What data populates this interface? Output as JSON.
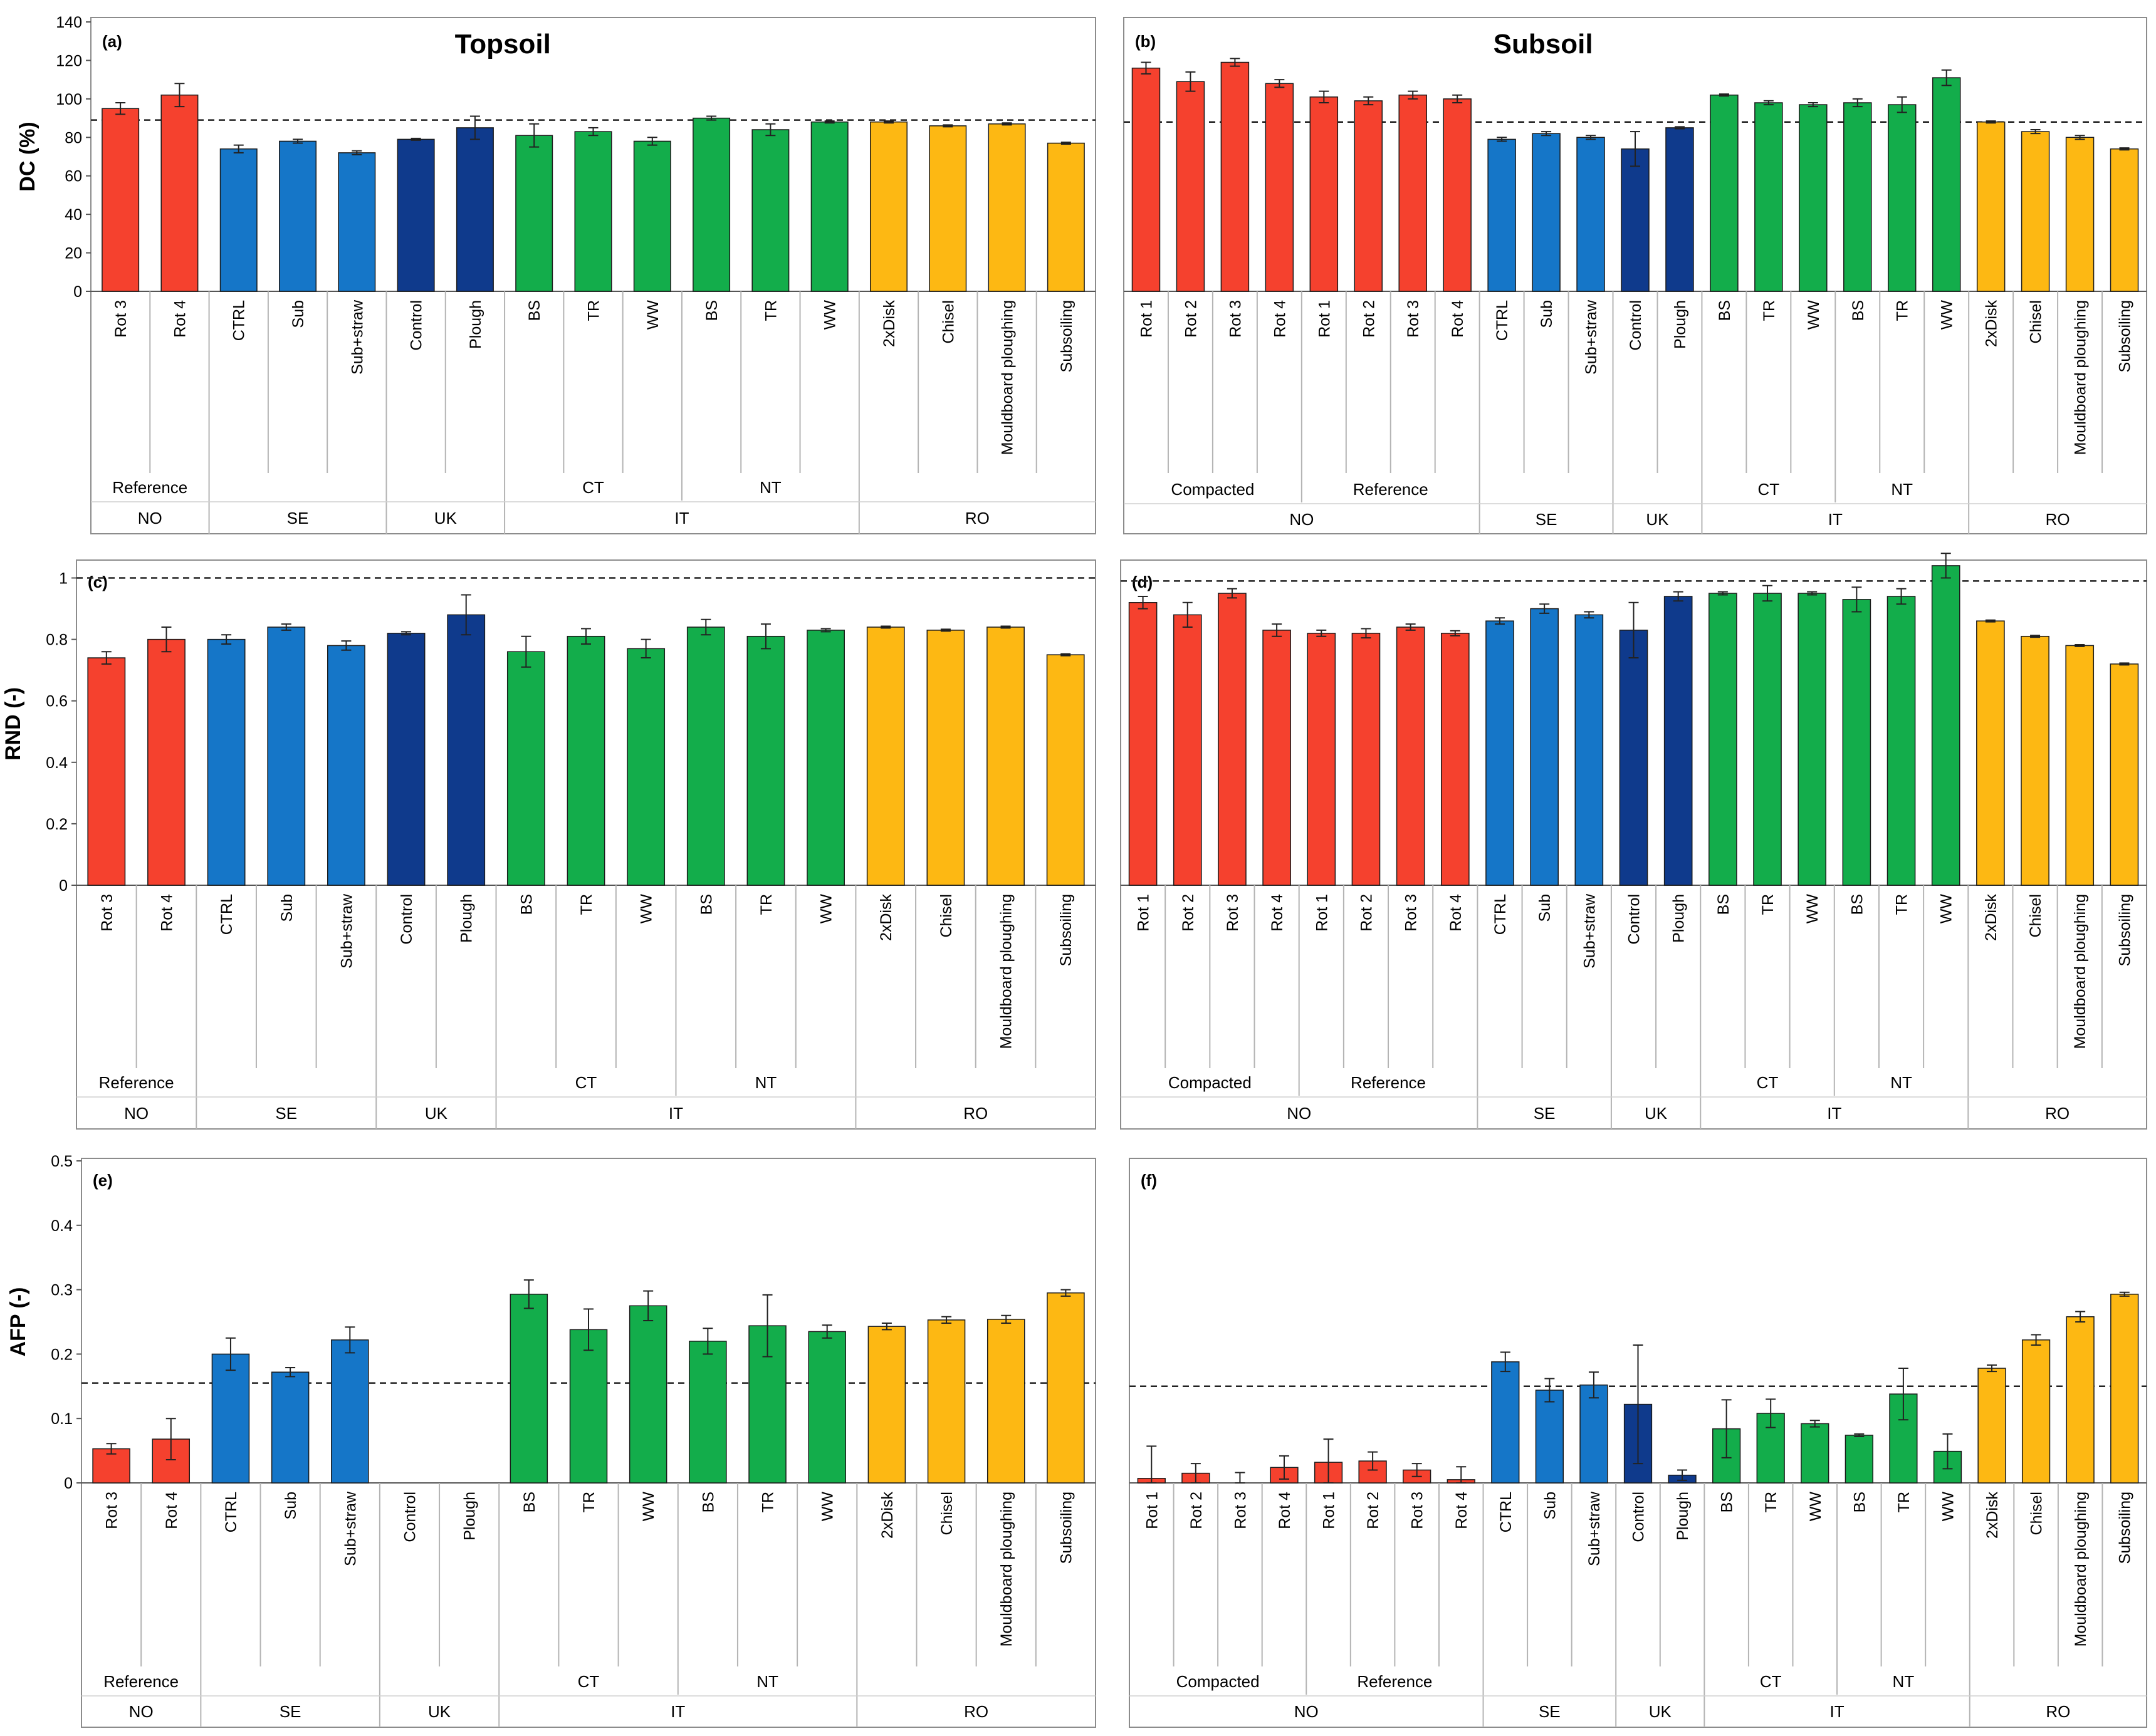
{
  "colors": {
    "NO": "#f5412e",
    "SE": "#1576c8",
    "UK": "#0f3a8c",
    "IT": "#13ad4b",
    "RO": "#fdb813"
  },
  "chart_data": [
    {
      "panel": "(a)",
      "title": "Topsoil",
      "ylabel": "DC (%)",
      "type": "bar",
      "ylim": [
        0,
        140
      ],
      "yticks": [
        0,
        20,
        40,
        60,
        80,
        100,
        120,
        140
      ],
      "reference_line": 89,
      "categories": [
        "Rot 3",
        "Rot 4",
        "CTRL",
        "Sub",
        "Sub+straw",
        "Control",
        "Plough",
        "BS",
        "TR",
        "WW",
        "BS",
        "TR",
        "WW",
        "2xDisk",
        "Chisel",
        "Mouldboard ploughing",
        "Subsoiling"
      ],
      "values": [
        95,
        102,
        74,
        78,
        72,
        79,
        85,
        81,
        83,
        78,
        90,
        84,
        88,
        88,
        86,
        87,
        77
      ],
      "errors": [
        3,
        6,
        2,
        1,
        1,
        0.5,
        6,
        6,
        2,
        2,
        1,
        3,
        0.5,
        0.5,
        0.5,
        0.5,
        0.5
      ],
      "country": [
        "NO",
        "NO",
        "SE",
        "SE",
        "SE",
        "UK",
        "UK",
        "IT",
        "IT",
        "IT",
        "IT",
        "IT",
        "IT",
        "RO",
        "RO",
        "RO",
        "RO"
      ],
      "groups_level1": [
        {
          "label": "Reference",
          "start": 0,
          "end": 1
        },
        {
          "label": "CT",
          "start": 7,
          "end": 9
        },
        {
          "label": "NT",
          "start": 10,
          "end": 12
        }
      ],
      "groups_level2": [
        {
          "label": "NO",
          "start": 0,
          "end": 1
        },
        {
          "label": "SE",
          "start": 2,
          "end": 4
        },
        {
          "label": "UK",
          "start": 5,
          "end": 6
        },
        {
          "label": "IT",
          "start": 7,
          "end": 12
        },
        {
          "label": "RO",
          "start": 13,
          "end": 16
        }
      ]
    },
    {
      "panel": "(b)",
      "title": "Subsoil",
      "ylabel": "",
      "type": "bar",
      "ylim": [
        0,
        140
      ],
      "yticks": [],
      "reference_line": 88,
      "categories": [
        "Rot 1",
        "Rot 2",
        "Rot 3",
        "Rot 4",
        "Rot 1",
        "Rot 2",
        "Rot 3",
        "Rot 4",
        "CTRL",
        "Sub",
        "Sub+straw",
        "Control",
        "Plough",
        "BS",
        "TR",
        "WW",
        "BS",
        "TR",
        "WW",
        "2xDisk",
        "Chisel",
        "Mouldboard ploughing",
        "Subsoiling"
      ],
      "values": [
        116,
        109,
        119,
        108,
        101,
        99,
        102,
        100,
        79,
        82,
        80,
        74,
        85,
        102,
        98,
        97,
        98,
        97,
        111,
        88,
        83,
        80,
        74
      ],
      "errors": [
        3,
        5,
        2,
        2,
        3,
        2,
        2,
        2,
        1,
        1,
        1,
        9,
        0.5,
        0.5,
        1,
        1,
        2,
        4,
        4,
        0.5,
        1,
        1,
        0.5
      ],
      "country": [
        "NO",
        "NO",
        "NO",
        "NO",
        "NO",
        "NO",
        "NO",
        "NO",
        "SE",
        "SE",
        "SE",
        "UK",
        "UK",
        "IT",
        "IT",
        "IT",
        "IT",
        "IT",
        "IT",
        "RO",
        "RO",
        "RO",
        "RO"
      ],
      "groups_level1": [
        {
          "label": "Compacted",
          "start": 0,
          "end": 3
        },
        {
          "label": "Reference",
          "start": 4,
          "end": 7
        },
        {
          "label": "CT",
          "start": 13,
          "end": 15
        },
        {
          "label": "NT",
          "start": 16,
          "end": 18
        }
      ],
      "groups_level2": [
        {
          "label": "NO",
          "start": 0,
          "end": 7
        },
        {
          "label": "SE",
          "start": 8,
          "end": 10
        },
        {
          "label": "UK",
          "start": 11,
          "end": 12
        },
        {
          "label": "IT",
          "start": 13,
          "end": 18
        },
        {
          "label": "RO",
          "start": 19,
          "end": 22
        }
      ]
    },
    {
      "panel": "(c)",
      "title": "",
      "ylabel": "RND (-)",
      "type": "bar",
      "ylim": [
        0,
        1.05
      ],
      "yticks": [
        0,
        0.2,
        0.4,
        0.6,
        0.8,
        1
      ],
      "reference_line": 1,
      "categories": [
        "Rot 3",
        "Rot 4",
        "CTRL",
        "Sub",
        "Sub+straw",
        "Control",
        "Plough",
        "BS",
        "TR",
        "WW",
        "BS",
        "TR",
        "WW",
        "2xDisk",
        "Chisel",
        "Mouldboard ploughing",
        "Subsoiling"
      ],
      "values": [
        0.74,
        0.8,
        0.8,
        0.84,
        0.78,
        0.82,
        0.88,
        0.76,
        0.81,
        0.77,
        0.84,
        0.81,
        0.83,
        0.84,
        0.83,
        0.84,
        0.75
      ],
      "errors": [
        0.02,
        0.04,
        0.015,
        0.01,
        0.015,
        0.005,
        0.065,
        0.05,
        0.025,
        0.03,
        0.025,
        0.04,
        0.005,
        0.003,
        0.003,
        0.003,
        0.003
      ],
      "country": [
        "NO",
        "NO",
        "SE",
        "SE",
        "SE",
        "UK",
        "UK",
        "IT",
        "IT",
        "IT",
        "IT",
        "IT",
        "IT",
        "RO",
        "RO",
        "RO",
        "RO"
      ],
      "groups_level1": [
        {
          "label": "Reference",
          "start": 0,
          "end": 1
        },
        {
          "label": "CT",
          "start": 7,
          "end": 9
        },
        {
          "label": "NT",
          "start": 10,
          "end": 12
        }
      ],
      "groups_level2": [
        {
          "label": "NO",
          "start": 0,
          "end": 1
        },
        {
          "label": "SE",
          "start": 2,
          "end": 4
        },
        {
          "label": "UK",
          "start": 5,
          "end": 6
        },
        {
          "label": "IT",
          "start": 7,
          "end": 12
        },
        {
          "label": "RO",
          "start": 13,
          "end": 16
        }
      ]
    },
    {
      "panel": "(d)",
      "title": "",
      "ylabel": "",
      "type": "bar",
      "ylim": [
        0,
        1.05
      ],
      "yticks": [],
      "reference_line": 0.99,
      "categories": [
        "Rot 1",
        "Rot 2",
        "Rot 3",
        "Rot 4",
        "Rot 1",
        "Rot 2",
        "Rot 3",
        "Rot 4",
        "CTRL",
        "Sub",
        "Sub+straw",
        "Control",
        "Plough",
        "BS",
        "TR",
        "WW",
        "BS",
        "TR",
        "WW",
        "2xDisk",
        "Chisel",
        "Mouldboard ploughing",
        "Subsoiling"
      ],
      "values": [
        0.92,
        0.88,
        0.95,
        0.83,
        0.82,
        0.82,
        0.84,
        0.82,
        0.86,
        0.9,
        0.88,
        0.83,
        0.94,
        0.95,
        0.95,
        0.95,
        0.93,
        0.94,
        1.04,
        0.86,
        0.81,
        0.78,
        0.72
      ],
      "errors": [
        0.02,
        0.04,
        0.015,
        0.02,
        0.01,
        0.015,
        0.01,
        0.008,
        0.01,
        0.015,
        0.01,
        0.09,
        0.015,
        0.005,
        0.025,
        0.005,
        0.04,
        0.025,
        0.04,
        0.003,
        0.003,
        0.003,
        0.003
      ],
      "country": [
        "NO",
        "NO",
        "NO",
        "NO",
        "NO",
        "NO",
        "NO",
        "NO",
        "SE",
        "SE",
        "SE",
        "UK",
        "UK",
        "IT",
        "IT",
        "IT",
        "IT",
        "IT",
        "IT",
        "RO",
        "RO",
        "RO",
        "RO"
      ],
      "groups_level1": [
        {
          "label": "Compacted",
          "start": 0,
          "end": 3
        },
        {
          "label": "Reference",
          "start": 4,
          "end": 7
        },
        {
          "label": "CT",
          "start": 13,
          "end": 15
        },
        {
          "label": "NT",
          "start": 16,
          "end": 18
        }
      ],
      "groups_level2": [
        {
          "label": "NO",
          "start": 0,
          "end": 7
        },
        {
          "label": "SE",
          "start": 8,
          "end": 10
        },
        {
          "label": "UK",
          "start": 11,
          "end": 12
        },
        {
          "label": "IT",
          "start": 13,
          "end": 18
        },
        {
          "label": "RO",
          "start": 19,
          "end": 22
        }
      ]
    },
    {
      "panel": "(e)",
      "title": "",
      "ylabel": "AFP (-)",
      "type": "bar",
      "ylim": [
        0,
        0.5
      ],
      "yticks": [
        0,
        0.1,
        0.2,
        0.3,
        0.4,
        0.5
      ],
      "reference_line": 0.155,
      "categories": [
        "Rot 3",
        "Rot 4",
        "CTRL",
        "Sub",
        "Sub+straw",
        "Control",
        "Plough",
        "BS",
        "TR",
        "WW",
        "BS",
        "TR",
        "WW",
        "2xDisk",
        "Chisel",
        "Mouldboard ploughing",
        "Subsoiling"
      ],
      "values": [
        0.053,
        0.068,
        0.2,
        0.172,
        0.222,
        null,
        null,
        0.293,
        0.238,
        0.275,
        0.22,
        0.244,
        0.235,
        0.243,
        0.253,
        0.254,
        0.295
      ],
      "errors": [
        0.008,
        0.032,
        0.025,
        0.007,
        0.02,
        null,
        null,
        0.022,
        0.032,
        0.023,
        0.02,
        0.048,
        0.01,
        0.005,
        0.005,
        0.006,
        0.005
      ],
      "country": [
        "NO",
        "NO",
        "SE",
        "SE",
        "SE",
        "UK",
        "UK",
        "IT",
        "IT",
        "IT",
        "IT",
        "IT",
        "IT",
        "RO",
        "RO",
        "RO",
        "RO"
      ],
      "groups_level1": [
        {
          "label": "Reference",
          "start": 0,
          "end": 1
        },
        {
          "label": "CT",
          "start": 7,
          "end": 9
        },
        {
          "label": "NT",
          "start": 10,
          "end": 12
        }
      ],
      "groups_level2": [
        {
          "label": "NO",
          "start": 0,
          "end": 1
        },
        {
          "label": "SE",
          "start": 2,
          "end": 4
        },
        {
          "label": "UK",
          "start": 5,
          "end": 6
        },
        {
          "label": "IT",
          "start": 7,
          "end": 12
        },
        {
          "label": "RO",
          "start": 13,
          "end": 16
        }
      ]
    },
    {
      "panel": "(f)",
      "title": "",
      "ylabel": "",
      "type": "bar",
      "ylim": [
        0,
        0.5
      ],
      "yticks": [],
      "reference_line": 0.15,
      "categories": [
        "Rot 1",
        "Rot 2",
        "Rot 3",
        "Rot 4",
        "Rot 1",
        "Rot 2",
        "Rot 3",
        "Rot 4",
        "CTRL",
        "Sub",
        "Sub+straw",
        "Control",
        "Plough",
        "BS",
        "TR",
        "WW",
        "BS",
        "TR",
        "WW",
        "2xDisk",
        "Chisel",
        "Mouldboard ploughing",
        "Subsoiling"
      ],
      "values": [
        0.007,
        0.015,
        0,
        0.024,
        0.032,
        0.034,
        0.02,
        0.005,
        0.188,
        0.144,
        0.152,
        0.122,
        0.012,
        0.084,
        0.108,
        0.092,
        0.074,
        0.138,
        0.049,
        0.178,
        0.222,
        0.258,
        0.293
      ],
      "errors": [
        0.05,
        0.015,
        0.016,
        0.018,
        0.036,
        0.014,
        0.01,
        0.02,
        0.015,
        0.018,
        0.02,
        0.092,
        0.008,
        0.045,
        0.022,
        0.005,
        0.002,
        0.04,
        0.027,
        0.005,
        0.008,
        0.008,
        0.003
      ],
      "country": [
        "NO",
        "NO",
        "NO",
        "NO",
        "NO",
        "NO",
        "NO",
        "NO",
        "SE",
        "SE",
        "SE",
        "UK",
        "UK",
        "IT",
        "IT",
        "IT",
        "IT",
        "IT",
        "IT",
        "RO",
        "RO",
        "RO",
        "RO"
      ],
      "groups_level1": [
        {
          "label": "Compacted",
          "start": 0,
          "end": 3
        },
        {
          "label": "Reference",
          "start": 4,
          "end": 7
        },
        {
          "label": "CT",
          "start": 13,
          "end": 15
        },
        {
          "label": "NT",
          "start": 16,
          "end": 18
        }
      ],
      "groups_level2": [
        {
          "label": "NO",
          "start": 0,
          "end": 7
        },
        {
          "label": "SE",
          "start": 8,
          "end": 10
        },
        {
          "label": "UK",
          "start": 11,
          "end": 12
        },
        {
          "label": "IT",
          "start": 13,
          "end": 18
        },
        {
          "label": "RO",
          "start": 19,
          "end": 22
        }
      ]
    }
  ]
}
